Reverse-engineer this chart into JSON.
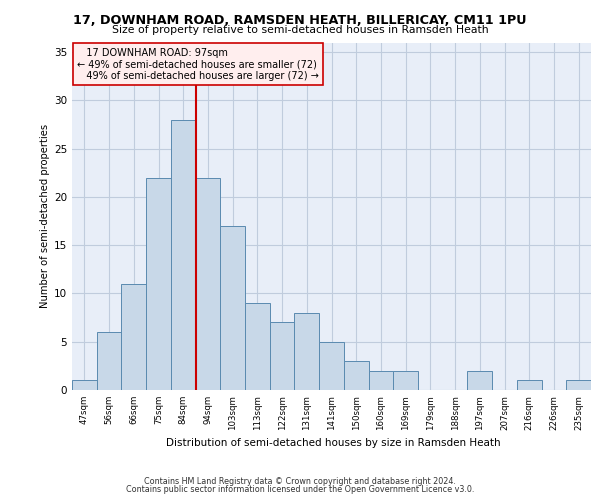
{
  "title_line1": "17, DOWNHAM ROAD, RAMSDEN HEATH, BILLERICAY, CM11 1PU",
  "title_line2": "Size of property relative to semi-detached houses in Ramsden Heath",
  "xlabel": "Distribution of semi-detached houses by size in Ramsden Heath",
  "ylabel": "Number of semi-detached properties",
  "categories": [
    "47sqm",
    "56sqm",
    "66sqm",
    "75sqm",
    "84sqm",
    "94sqm",
    "103sqm",
    "113sqm",
    "122sqm",
    "131sqm",
    "141sqm",
    "150sqm",
    "160sqm",
    "169sqm",
    "179sqm",
    "188sqm",
    "197sqm",
    "207sqm",
    "216sqm",
    "226sqm",
    "235sqm"
  ],
  "values": [
    1,
    6,
    11,
    22,
    28,
    22,
    17,
    9,
    7,
    8,
    5,
    3,
    2,
    2,
    0,
    0,
    2,
    0,
    1,
    0,
    1
  ],
  "bar_color": "#c8d8e8",
  "bar_edge_color": "#5a8ab0",
  "property_label": "17 DOWNHAM ROAD: 97sqm",
  "pct_smaller": 49,
  "pct_larger": 49,
  "count_smaller": 72,
  "count_larger": 72,
  "vline_x_index": 4.5,
  "ylim": [
    0,
    36
  ],
  "yticks": [
    0,
    5,
    10,
    15,
    20,
    25,
    30,
    35
  ],
  "grid_color": "#c0ccdd",
  "background_color": "#e8eef8",
  "vline_color": "#cc0000",
  "footer_line1": "Contains HM Land Registry data © Crown copyright and database right 2024.",
  "footer_line2": "Contains public sector information licensed under the Open Government Licence v3.0."
}
